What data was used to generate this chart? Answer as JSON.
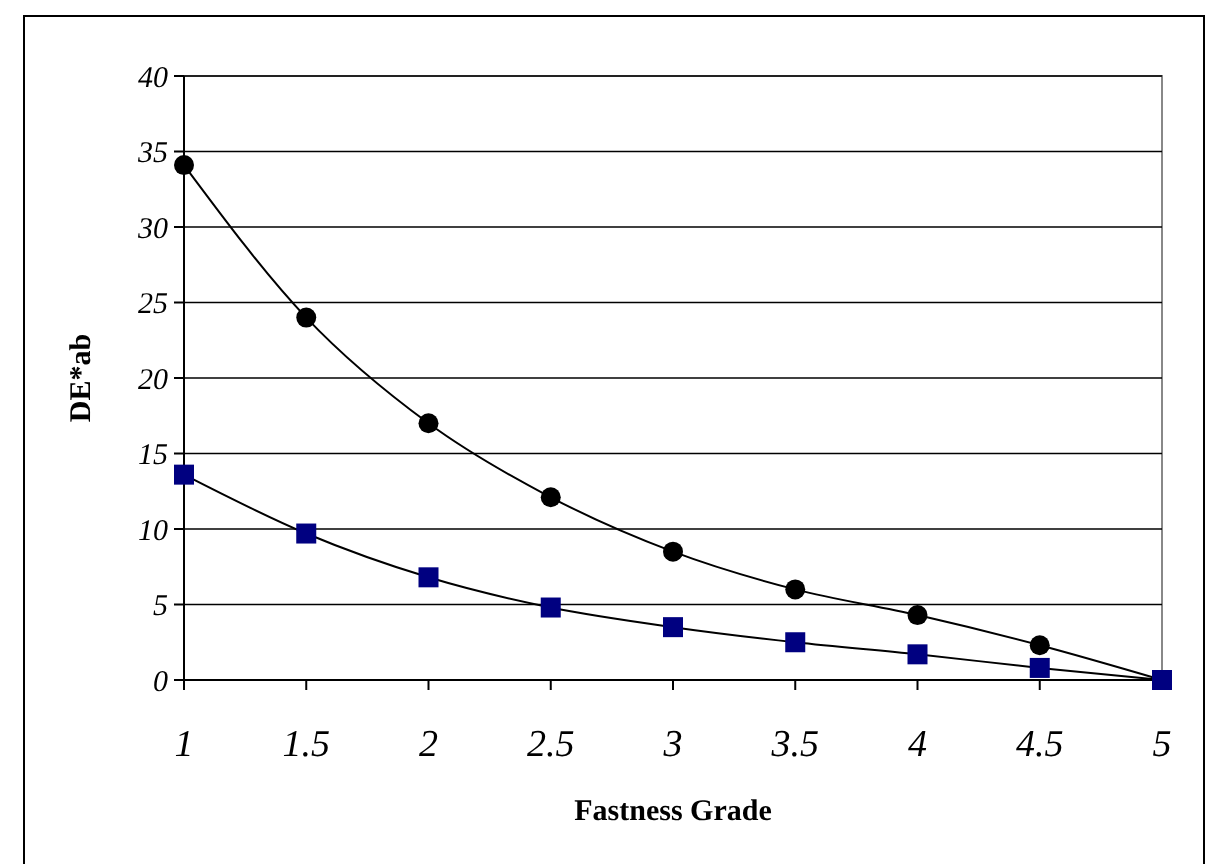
{
  "chart_data": {
    "type": "line",
    "xlabel": "Fastness Grade",
    "ylabel": "DE*ab",
    "x": [
      1,
      1.5,
      2,
      2.5,
      3,
      3.5,
      4,
      4.5,
      5
    ],
    "series": [
      {
        "color": "#000000",
        "marker": "circle",
        "values": [
          34.1,
          24,
          17,
          12.1,
          8.5,
          6,
          4.3,
          2.3,
          0
        ]
      },
      {
        "color": "#000080",
        "marker": "square",
        "values": [
          13.6,
          9.7,
          6.8,
          4.8,
          3.5,
          2.5,
          1.7,
          0.8,
          0
        ]
      }
    ],
    "xlim": [
      1,
      5
    ],
    "xticks": [
      1,
      1.5,
      2,
      2.5,
      3,
      3.5,
      4,
      4.5,
      5
    ],
    "ylim": [
      0,
      40
    ],
    "yticks": [
      0,
      5,
      10,
      15,
      20,
      25,
      30,
      35,
      40
    ],
    "grid": "y",
    "line_style": "solid"
  }
}
